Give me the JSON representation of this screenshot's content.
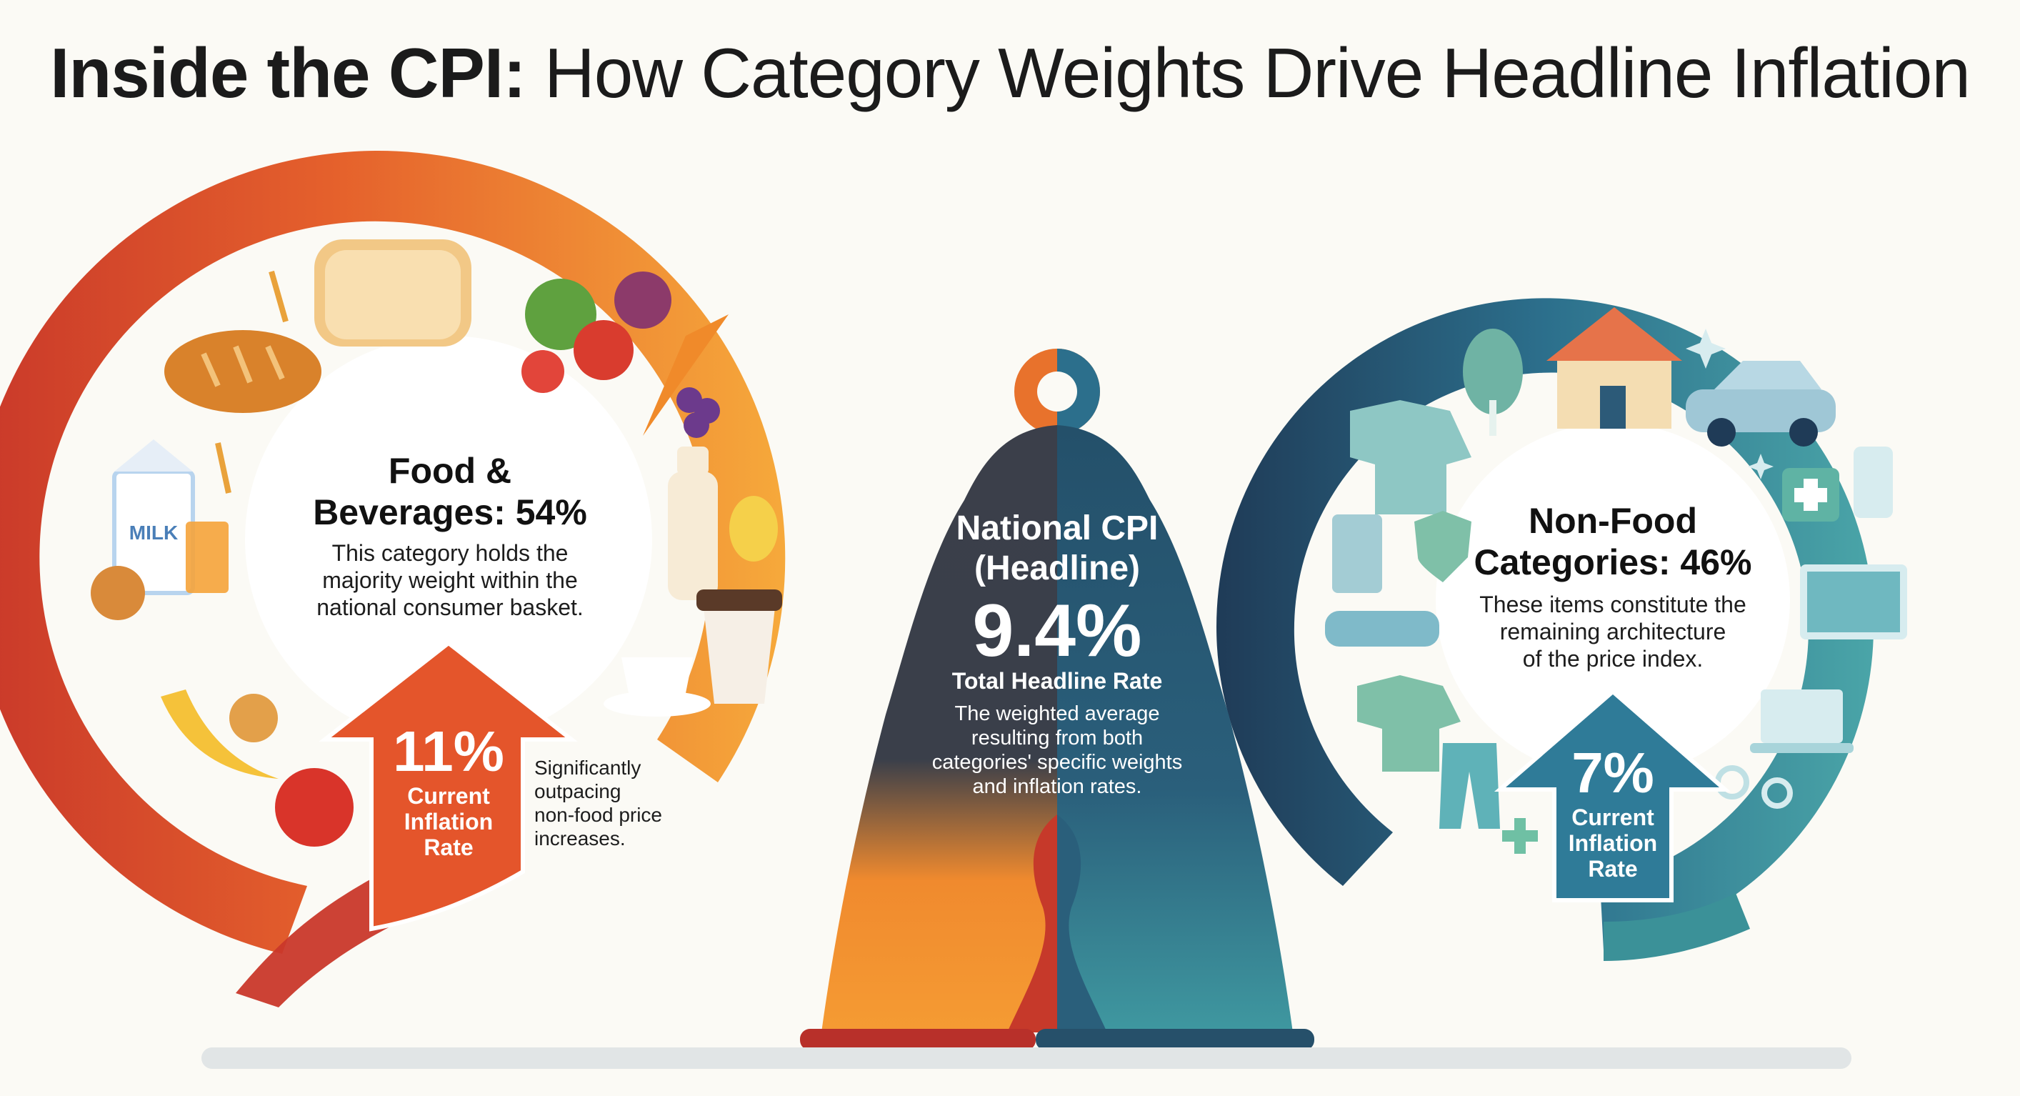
{
  "title": {
    "bold": "Inside the CPI:",
    "regular": " How Category Weights Drive Headline Inflation"
  },
  "food": {
    "heading_line1": "Food &",
    "heading_line2": "Beverages: 54%",
    "desc_line1": "This category holds the",
    "desc_line2": "majority weight within the",
    "desc_line3": "national consumer basket.",
    "rate_value": "11%",
    "rate_label_line1": "Current",
    "rate_label_line2": "Inflation",
    "rate_label_line3": "Rate",
    "note_line1": "Significantly",
    "note_line2": "outpacing",
    "note_line3": "non-food price",
    "note_line4": "increases.",
    "milk_label": "MILK"
  },
  "national": {
    "heading_line1": "National CPI",
    "heading_line2": "(Headline)",
    "value": "9.4%",
    "subtitle": "Total Headline Rate",
    "desc_line1": "The weighted average",
    "desc_line2": "resulting from both",
    "desc_line3": "categories' specific weights",
    "desc_line4": "and inflation rates."
  },
  "nonfood": {
    "heading_line1": "Non-Food",
    "heading_line2": "Categories: 46%",
    "desc_line1": "These items constitute the",
    "desc_line2": "remaining architecture",
    "desc_line3": "of the price index.",
    "rate_value": "7%",
    "rate_label_line1": "Current",
    "rate_label_line2": "Inflation",
    "rate_label_line3": "Rate"
  },
  "colors": {
    "background": "#fbfaf5",
    "food_red": "#c9382a",
    "food_orange": "#ef7b2c",
    "food_amber": "#f6a93b",
    "nonfood_navy": "#23405a",
    "nonfood_blue": "#2c6f8c",
    "nonfood_teal": "#4aa5a8",
    "cpi_dark": "#2c3e50"
  },
  "icons": {
    "food": [
      "bread-loaf-icon",
      "baguette-icon",
      "vegetables-icon",
      "milk-carton-icon",
      "juice-glass-icon",
      "bottle-icon",
      "lemon-icon",
      "coffee-cup-icon",
      "takeaway-coffee-icon",
      "banana-icon",
      "apple-icon",
      "cookie-icon",
      "wheat-icon",
      "grapes-icon",
      "carrot-icon"
    ],
    "nonfood": [
      "house-icon",
      "car-icon",
      "tree-icon",
      "shirt-icon",
      "shield-icon",
      "phone-icon",
      "medical-kit-icon",
      "monitor-icon",
      "laptop-icon",
      "trousers-icon",
      "id-card-icon",
      "stethoscope-icon",
      "gear-icon",
      "sparkle-icon"
    ]
  }
}
